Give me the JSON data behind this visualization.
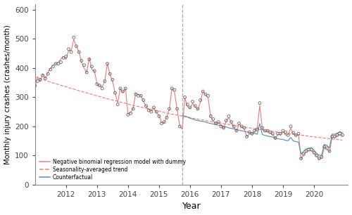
{
  "title": "",
  "ylabel": "Monthly injury crashes (crashes/month)",
  "xlabel": "Year",
  "ylim": [
    0,
    620
  ],
  "yticks": [
    0,
    100,
    200,
    300,
    400,
    500,
    600
  ],
  "intervention_year": 2015.75,
  "model_color": "#E8837A",
  "trend_color": "#E8837A",
  "counterfactual_color": "#5B8DB8",
  "obs_color": "#666666",
  "legend_labels": [
    "Negative binomial regression model with dummy",
    "Seasonality-averaged trend",
    "Counterfactual"
  ],
  "xlim": [
    2011.0,
    2021.1
  ],
  "xticks": [
    2012,
    2013,
    2014,
    2015,
    2016,
    2017,
    2018,
    2019,
    2020
  ],
  "months": [
    2011.0,
    2011.083,
    2011.167,
    2011.25,
    2011.333,
    2011.417,
    2011.5,
    2011.583,
    2011.667,
    2011.75,
    2011.833,
    2011.917,
    2012.0,
    2012.083,
    2012.167,
    2012.25,
    2012.333,
    2012.417,
    2012.5,
    2012.583,
    2012.667,
    2012.75,
    2012.833,
    2012.917,
    2013.0,
    2013.083,
    2013.167,
    2013.25,
    2013.333,
    2013.417,
    2013.5,
    2013.583,
    2013.667,
    2013.75,
    2013.833,
    2013.917,
    2014.0,
    2014.083,
    2014.167,
    2014.25,
    2014.333,
    2014.417,
    2014.5,
    2014.583,
    2014.667,
    2014.75,
    2014.833,
    2014.917,
    2015.0,
    2015.083,
    2015.167,
    2015.25,
    2015.333,
    2015.417,
    2015.5,
    2015.583,
    2015.667,
    2015.75,
    2015.833,
    2015.917,
    2016.0,
    2016.083,
    2016.167,
    2016.25,
    2016.333,
    2016.417,
    2016.5,
    2016.583,
    2016.667,
    2016.75,
    2016.833,
    2016.917,
    2017.0,
    2017.083,
    2017.167,
    2017.25,
    2017.333,
    2017.417,
    2017.5,
    2017.583,
    2017.667,
    2017.75,
    2017.833,
    2017.917,
    2018.0,
    2018.083,
    2018.167,
    2018.25,
    2018.333,
    2018.417,
    2018.5,
    2018.583,
    2018.667,
    2018.75,
    2018.833,
    2018.917,
    2019.0,
    2019.083,
    2019.167,
    2019.25,
    2019.333,
    2019.417,
    2019.5,
    2019.583,
    2019.667,
    2019.75,
    2019.833,
    2019.917,
    2020.0,
    2020.083,
    2020.167,
    2020.25,
    2020.333,
    2020.417,
    2020.5,
    2020.583,
    2020.667,
    2020.75,
    2020.833,
    2020.917
  ],
  "observed": [
    340,
    355,
    360,
    375,
    365,
    380,
    395,
    405,
    415,
    415,
    420,
    435,
    440,
    465,
    455,
    505,
    475,
    455,
    425,
    410,
    385,
    430,
    405,
    390,
    345,
    340,
    330,
    355,
    415,
    380,
    360,
    315,
    275,
    330,
    320,
    330,
    240,
    245,
    260,
    310,
    305,
    305,
    290,
    270,
    255,
    250,
    265,
    250,
    235,
    210,
    215,
    230,
    260,
    330,
    325,
    260,
    200,
    null,
    300,
    275,
    265,
    285,
    270,
    260,
    290,
    320,
    310,
    305,
    235,
    225,
    210,
    215,
    200,
    195,
    220,
    235,
    215,
    200,
    185,
    210,
    200,
    195,
    165,
    180,
    175,
    185,
    190,
    280,
    195,
    185,
    185,
    180,
    175,
    160,
    175,
    175,
    185,
    180,
    170,
    200,
    178,
    170,
    175,
    90,
    105,
    115,
    120,
    120,
    110,
    100,
    90,
    95,
    130,
    125,
    115,
    165,
    165,
    170,
    175,
    170
  ],
  "model": [
    340,
    370,
    355,
    380,
    365,
    385,
    400,
    410,
    415,
    420,
    430,
    440,
    430,
    460,
    460,
    498,
    475,
    455,
    420,
    400,
    385,
    435,
    395,
    390,
    345,
    340,
    335,
    355,
    415,
    378,
    355,
    315,
    280,
    330,
    315,
    330,
    243,
    248,
    262,
    315,
    308,
    305,
    285,
    270,
    258,
    252,
    264,
    248,
    238,
    212,
    213,
    232,
    258,
    330,
    318,
    258,
    203,
    190,
    298,
    268,
    262,
    278,
    268,
    258,
    283,
    320,
    308,
    298,
    232,
    218,
    208,
    214,
    203,
    192,
    218,
    230,
    213,
    198,
    183,
    208,
    198,
    192,
    164,
    174,
    173,
    183,
    192,
    272,
    192,
    183,
    183,
    178,
    173,
    158,
    173,
    172,
    182,
    170,
    172,
    193,
    174,
    168,
    172,
    88,
    103,
    113,
    118,
    118,
    108,
    98,
    88,
    93,
    128,
    123,
    113,
    162,
    163,
    168,
    172,
    168
  ],
  "trend": [
    370,
    367,
    364,
    361,
    358,
    355,
    352,
    349,
    346,
    344,
    341,
    338,
    336,
    333,
    330,
    328,
    325,
    322,
    320,
    317,
    315,
    312,
    310,
    307,
    305,
    302,
    300,
    297,
    295,
    293,
    290,
    288,
    286,
    283,
    281,
    279,
    277,
    274,
    272,
    270,
    268,
    266,
    264,
    262,
    260,
    258,
    256,
    254,
    252,
    250,
    248,
    246,
    244,
    242,
    241,
    239,
    237,
    235,
    233,
    232,
    230,
    228,
    227,
    225,
    223,
    222,
    220,
    218,
    217,
    215,
    214,
    212,
    211,
    209,
    208,
    206,
    205,
    203,
    202,
    200,
    199,
    197,
    196,
    195,
    193,
    192,
    191,
    189,
    188,
    187,
    185,
    184,
    183,
    182,
    180,
    179,
    178,
    177,
    176,
    174,
    173,
    172,
    171,
    170,
    169,
    168,
    166,
    165,
    164,
    163,
    162,
    161,
    160,
    159,
    158,
    157,
    156,
    155,
    154,
    153
  ],
  "counterfactual_x": [
    2015.75,
    2015.833,
    2015.917,
    2016.0,
    2016.083,
    2016.167,
    2016.25,
    2016.333,
    2016.417,
    2016.5,
    2016.583,
    2016.667,
    2016.75,
    2016.833,
    2016.917,
    2017.0,
    2017.083,
    2017.167,
    2017.25,
    2017.333,
    2017.417,
    2017.5,
    2017.583,
    2017.667,
    2017.75,
    2017.833,
    2017.917,
    2018.0,
    2018.083,
    2018.167,
    2018.25,
    2018.333,
    2018.417,
    2018.5,
    2018.583,
    2018.667,
    2018.75,
    2018.833,
    2018.917,
    2019.0,
    2019.083,
    2019.167,
    2019.25,
    2019.333,
    2019.417,
    2019.5,
    2019.583,
    2019.667,
    2019.75,
    2019.833,
    2019.917,
    2020.0,
    2020.083,
    2020.167,
    2020.25,
    2020.333,
    2020.417,
    2020.5,
    2020.583,
    2020.667,
    2020.75,
    2020.833,
    2020.917
  ],
  "counterfactual": [
    237,
    235,
    232,
    228,
    225,
    222,
    220,
    218,
    217,
    215,
    212,
    210,
    208,
    206,
    204,
    203,
    200,
    198,
    195,
    193,
    191,
    189,
    187,
    185,
    183,
    181,
    179,
    178,
    176,
    173,
    210,
    172,
    169,
    167,
    165,
    163,
    160,
    158,
    156,
    155,
    152,
    151,
    162,
    150,
    148,
    146,
    105,
    115,
    123,
    125,
    127,
    118,
    108,
    100,
    103,
    138,
    135,
    126,
    173,
    173,
    177,
    182,
    178
  ]
}
